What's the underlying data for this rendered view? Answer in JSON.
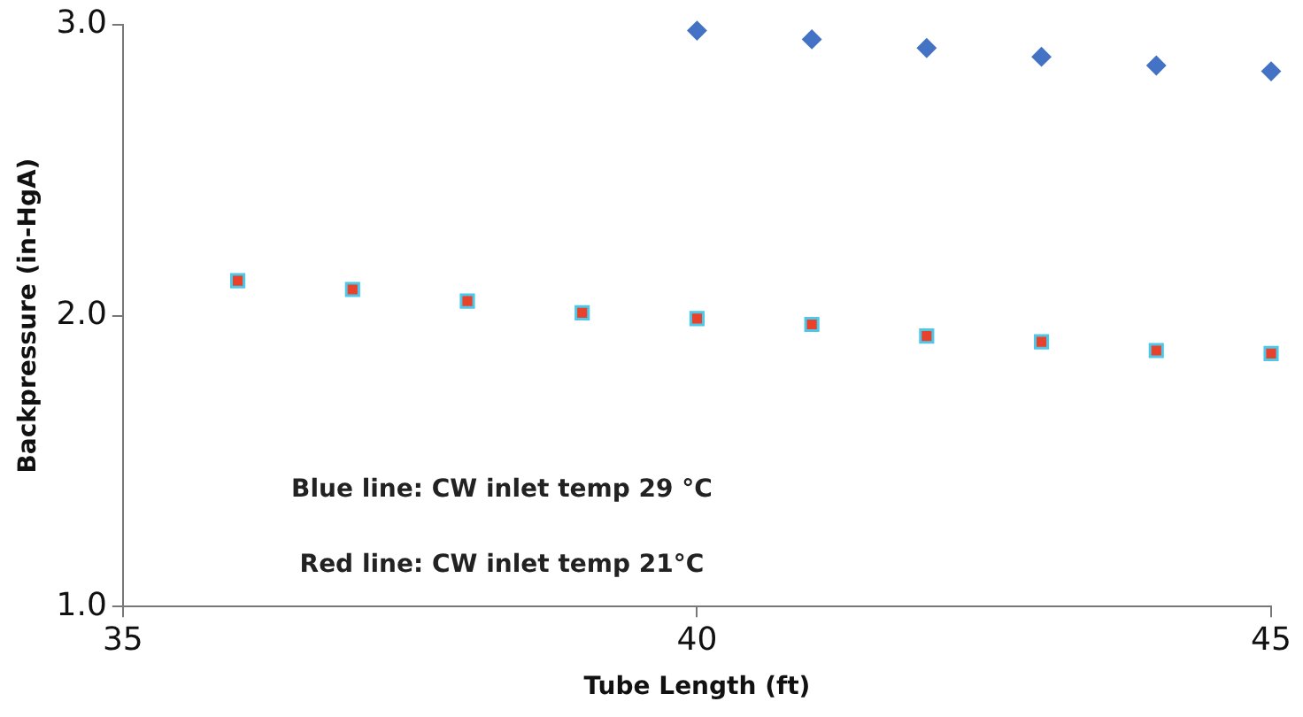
{
  "chart_data": {
    "type": "scatter",
    "xlabel": "Tube Length (ft)",
    "ylabel": "Backpressure (in-HgA)",
    "series": [
      {
        "color": "#4472c4",
        "marker": "diamond",
        "x": [
          40,
          41,
          42,
          43,
          44,
          45
        ],
        "values": [
          2.98,
          2.95,
          2.92,
          2.89,
          2.86,
          2.84
        ]
      },
      {
        "color": "#e8412c",
        "marker": "square",
        "x": [
          36,
          37,
          38,
          39,
          40,
          41,
          42,
          43,
          44,
          45
        ],
        "values": [
          2.12,
          2.09,
          2.05,
          2.01,
          1.99,
          1.97,
          1.93,
          1.91,
          1.88,
          1.87
        ]
      }
    ],
    "xlim": [
      35,
      45
    ],
    "xticks": [
      35,
      40,
      45
    ],
    "ylim": [
      1,
      3
    ],
    "yticks": [
      {
        "value": 1,
        "label": "1.0"
      },
      {
        "value": 2,
        "label": "2.0"
      },
      {
        "value": 3,
        "label": "3.0"
      }
    ],
    "grid": false,
    "legend": false,
    "annotations": [
      "Blue line: CW inlet temp 29 °C",
      "Red line: CW inlet temp 21°C"
    ]
  }
}
